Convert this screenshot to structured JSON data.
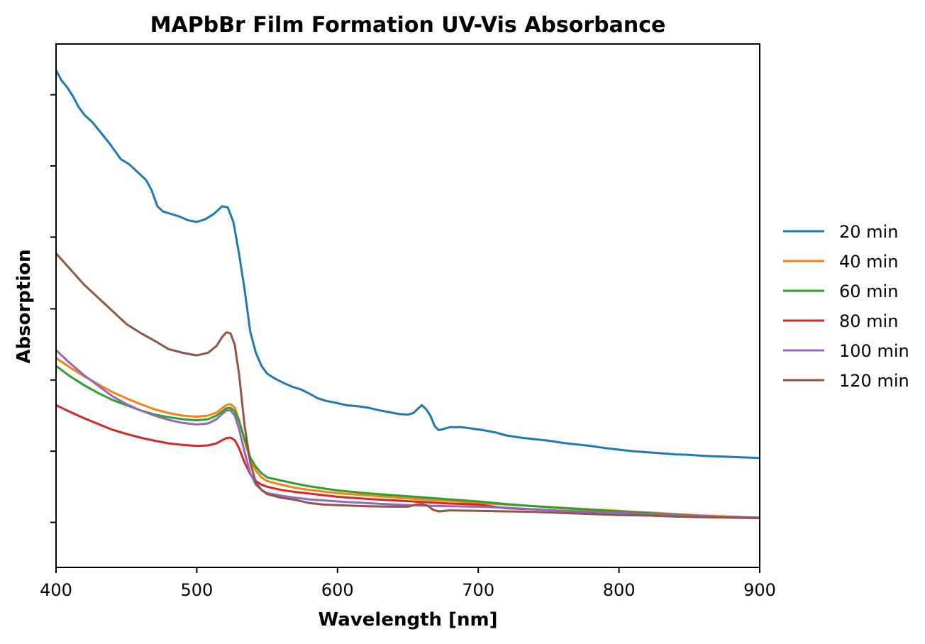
{
  "chart_data": {
    "type": "line",
    "title": "MAPbBr Film Formation UV-Vis Absorbance",
    "xlabel": "Wavelength [nm]",
    "ylabel": "Absorption",
    "xlim": [
      400,
      900
    ],
    "ylim": [
      0,
      1
    ],
    "x_ticks": [
      400,
      500,
      600,
      700,
      800,
      900
    ],
    "y_tick_labels_shown": false,
    "y_ticks": [
      0.086,
      0.222,
      0.358,
      0.494,
      0.631,
      0.767,
      0.903
    ],
    "grid": false,
    "legend": "right-outside",
    "series": [
      {
        "name": "20 min",
        "color": "#1f77b4",
        "points": [
          [
            400,
            0.95
          ],
          [
            404,
            0.93
          ],
          [
            408,
            0.917
          ],
          [
            412,
            0.9
          ],
          [
            416,
            0.88
          ],
          [
            420,
            0.865
          ],
          [
            426,
            0.85
          ],
          [
            432,
            0.83
          ],
          [
            438,
            0.81
          ],
          [
            442,
            0.795
          ],
          [
            446,
            0.78
          ],
          [
            452,
            0.77
          ],
          [
            458,
            0.755
          ],
          [
            464,
            0.74
          ],
          [
            468,
            0.72
          ],
          [
            472,
            0.69
          ],
          [
            476,
            0.68
          ],
          [
            482,
            0.675
          ],
          [
            488,
            0.67
          ],
          [
            494,
            0.663
          ],
          [
            500,
            0.66
          ],
          [
            506,
            0.665
          ],
          [
            512,
            0.675
          ],
          [
            518,
            0.69
          ],
          [
            522,
            0.688
          ],
          [
            526,
            0.66
          ],
          [
            530,
            0.6
          ],
          [
            534,
            0.53
          ],
          [
            538,
            0.45
          ],
          [
            542,
            0.41
          ],
          [
            546,
            0.385
          ],
          [
            550,
            0.37
          ],
          [
            556,
            0.36
          ],
          [
            562,
            0.352
          ],
          [
            568,
            0.345
          ],
          [
            574,
            0.34
          ],
          [
            580,
            0.332
          ],
          [
            586,
            0.323
          ],
          [
            592,
            0.318
          ],
          [
            598,
            0.315
          ],
          [
            606,
            0.31
          ],
          [
            614,
            0.308
          ],
          [
            622,
            0.305
          ],
          [
            630,
            0.3
          ],
          [
            638,
            0.296
          ],
          [
            644,
            0.293
          ],
          [
            650,
            0.292
          ],
          [
            654,
            0.295
          ],
          [
            657,
            0.303
          ],
          [
            660,
            0.31
          ],
          [
            663,
            0.302
          ],
          [
            666,
            0.29
          ],
          [
            669,
            0.27
          ],
          [
            672,
            0.262
          ],
          [
            676,
            0.265
          ],
          [
            680,
            0.268
          ],
          [
            688,
            0.268
          ],
          [
            696,
            0.265
          ],
          [
            704,
            0.262
          ],
          [
            712,
            0.258
          ],
          [
            720,
            0.252
          ],
          [
            730,
            0.248
          ],
          [
            740,
            0.245
          ],
          [
            750,
            0.242
          ],
          [
            760,
            0.238
          ],
          [
            770,
            0.235
          ],
          [
            780,
            0.232
          ],
          [
            790,
            0.228
          ],
          [
            800,
            0.225
          ],
          [
            810,
            0.222
          ],
          [
            820,
            0.22
          ],
          [
            830,
            0.218
          ],
          [
            840,
            0.216
          ],
          [
            850,
            0.215
          ],
          [
            860,
            0.213
          ],
          [
            870,
            0.212
          ],
          [
            880,
            0.211
          ],
          [
            890,
            0.21
          ],
          [
            900,
            0.209
          ]
        ]
      },
      {
        "name": "40 min",
        "color": "#ff7f0e",
        "points": [
          [
            400,
            0.4
          ],
          [
            410,
            0.382
          ],
          [
            420,
            0.365
          ],
          [
            430,
            0.35
          ],
          [
            440,
            0.335
          ],
          [
            450,
            0.323
          ],
          [
            460,
            0.312
          ],
          [
            470,
            0.302
          ],
          [
            480,
            0.295
          ],
          [
            490,
            0.29
          ],
          [
            500,
            0.288
          ],
          [
            508,
            0.29
          ],
          [
            514,
            0.296
          ],
          [
            518,
            0.304
          ],
          [
            521,
            0.31
          ],
          [
            524,
            0.312
          ],
          [
            527,
            0.305
          ],
          [
            530,
            0.282
          ],
          [
            534,
            0.242
          ],
          [
            538,
            0.205
          ],
          [
            542,
            0.185
          ],
          [
            546,
            0.172
          ],
          [
            550,
            0.165
          ],
          [
            560,
            0.158
          ],
          [
            570,
            0.152
          ],
          [
            580,
            0.148
          ],
          [
            590,
            0.145
          ],
          [
            600,
            0.142
          ],
          [
            620,
            0.138
          ],
          [
            640,
            0.134
          ],
          [
            660,
            0.13
          ],
          [
            680,
            0.127
          ],
          [
            700,
            0.123
          ],
          [
            720,
            0.12
          ],
          [
            740,
            0.117
          ],
          [
            760,
            0.114
          ],
          [
            780,
            0.111
          ],
          [
            800,
            0.108
          ],
          [
            820,
            0.105
          ],
          [
            840,
            0.102
          ],
          [
            860,
            0.099
          ],
          [
            880,
            0.097
          ],
          [
            900,
            0.095
          ]
        ]
      },
      {
        "name": "60 min",
        "color": "#2ca02c",
        "points": [
          [
            400,
            0.385
          ],
          [
            410,
            0.365
          ],
          [
            420,
            0.348
          ],
          [
            430,
            0.333
          ],
          [
            440,
            0.32
          ],
          [
            450,
            0.31
          ],
          [
            460,
            0.3
          ],
          [
            470,
            0.292
          ],
          [
            480,
            0.287
          ],
          [
            490,
            0.283
          ],
          [
            500,
            0.281
          ],
          [
            508,
            0.283
          ],
          [
            514,
            0.29
          ],
          [
            518,
            0.298
          ],
          [
            521,
            0.304
          ],
          [
            524,
            0.305
          ],
          [
            527,
            0.298
          ],
          [
            530,
            0.28
          ],
          [
            534,
            0.245
          ],
          [
            538,
            0.21
          ],
          [
            542,
            0.192
          ],
          [
            546,
            0.18
          ],
          [
            550,
            0.172
          ],
          [
            560,
            0.166
          ],
          [
            570,
            0.16
          ],
          [
            580,
            0.155
          ],
          [
            590,
            0.151
          ],
          [
            600,
            0.147
          ],
          [
            620,
            0.142
          ],
          [
            640,
            0.138
          ],
          [
            660,
            0.134
          ],
          [
            680,
            0.13
          ],
          [
            700,
            0.126
          ],
          [
            720,
            0.121
          ],
          [
            740,
            0.117
          ],
          [
            760,
            0.113
          ],
          [
            780,
            0.11
          ],
          [
            800,
            0.107
          ],
          [
            820,
            0.104
          ],
          [
            840,
            0.101
          ],
          [
            860,
            0.098
          ],
          [
            880,
            0.096
          ],
          [
            900,
            0.094
          ]
        ]
      },
      {
        "name": "80 min",
        "color": "#d62728",
        "points": [
          [
            400,
            0.31
          ],
          [
            410,
            0.297
          ],
          [
            420,
            0.285
          ],
          [
            430,
            0.274
          ],
          [
            440,
            0.263
          ],
          [
            450,
            0.255
          ],
          [
            460,
            0.248
          ],
          [
            470,
            0.242
          ],
          [
            480,
            0.237
          ],
          [
            490,
            0.234
          ],
          [
            500,
            0.232
          ],
          [
            508,
            0.233
          ],
          [
            514,
            0.237
          ],
          [
            518,
            0.243
          ],
          [
            521,
            0.247
          ],
          [
            524,
            0.248
          ],
          [
            527,
            0.243
          ],
          [
            530,
            0.228
          ],
          [
            534,
            0.2
          ],
          [
            538,
            0.178
          ],
          [
            542,
            0.165
          ],
          [
            546,
            0.158
          ],
          [
            550,
            0.154
          ],
          [
            560,
            0.148
          ],
          [
            570,
            0.144
          ],
          [
            580,
            0.141
          ],
          [
            590,
            0.138
          ],
          [
            600,
            0.135
          ],
          [
            620,
            0.131
          ],
          [
            640,
            0.128
          ],
          [
            660,
            0.125
          ],
          [
            680,
            0.122
          ],
          [
            700,
            0.12
          ],
          [
            720,
            0.113
          ],
          [
            740,
            0.111
          ],
          [
            760,
            0.108
          ],
          [
            780,
            0.106
          ],
          [
            800,
            0.104
          ],
          [
            820,
            0.102
          ],
          [
            840,
            0.1
          ],
          [
            860,
            0.098
          ],
          [
            880,
            0.096
          ],
          [
            900,
            0.095
          ]
        ]
      },
      {
        "name": "100 min",
        "color": "#9467bd",
        "points": [
          [
            400,
            0.415
          ],
          [
            410,
            0.39
          ],
          [
            420,
            0.367
          ],
          [
            430,
            0.347
          ],
          [
            440,
            0.327
          ],
          [
            450,
            0.312
          ],
          [
            460,
            0.3
          ],
          [
            470,
            0.29
          ],
          [
            480,
            0.282
          ],
          [
            490,
            0.276
          ],
          [
            500,
            0.273
          ],
          [
            508,
            0.275
          ],
          [
            514,
            0.283
          ],
          [
            518,
            0.293
          ],
          [
            521,
            0.3
          ],
          [
            524,
            0.3
          ],
          [
            527,
            0.29
          ],
          [
            530,
            0.265
          ],
          [
            534,
            0.22
          ],
          [
            538,
            0.18
          ],
          [
            542,
            0.158
          ],
          [
            546,
            0.148
          ],
          [
            550,
            0.142
          ],
          [
            560,
            0.137
          ],
          [
            570,
            0.133
          ],
          [
            580,
            0.13
          ],
          [
            590,
            0.128
          ],
          [
            600,
            0.126
          ],
          [
            620,
            0.123
          ],
          [
            640,
            0.12
          ],
          [
            660,
            0.118
          ],
          [
            680,
            0.117
          ],
          [
            700,
            0.116
          ],
          [
            720,
            0.114
          ],
          [
            740,
            0.111
          ],
          [
            760,
            0.108
          ],
          [
            780,
            0.106
          ],
          [
            800,
            0.104
          ],
          [
            820,
            0.102
          ],
          [
            840,
            0.1
          ],
          [
            860,
            0.098
          ],
          [
            880,
            0.096
          ],
          [
            900,
            0.095
          ]
        ]
      },
      {
        "name": "120 min",
        "color": "#8c564b",
        "points": [
          [
            400,
            0.6
          ],
          [
            410,
            0.57
          ],
          [
            420,
            0.54
          ],
          [
            430,
            0.515
          ],
          [
            440,
            0.49
          ],
          [
            450,
            0.465
          ],
          [
            460,
            0.448
          ],
          [
            470,
            0.433
          ],
          [
            480,
            0.417
          ],
          [
            490,
            0.41
          ],
          [
            500,
            0.405
          ],
          [
            508,
            0.41
          ],
          [
            514,
            0.423
          ],
          [
            518,
            0.44
          ],
          [
            521,
            0.449
          ],
          [
            524,
            0.447
          ],
          [
            527,
            0.425
          ],
          [
            530,
            0.37
          ],
          [
            534,
            0.27
          ],
          [
            538,
            0.2
          ],
          [
            542,
            0.162
          ],
          [
            546,
            0.148
          ],
          [
            550,
            0.14
          ],
          [
            560,
            0.133
          ],
          [
            570,
            0.129
          ],
          [
            580,
            0.123
          ],
          [
            590,
            0.12
          ],
          [
            600,
            0.119
          ],
          [
            620,
            0.117
          ],
          [
            640,
            0.116
          ],
          [
            650,
            0.116
          ],
          [
            656,
            0.12
          ],
          [
            660,
            0.121
          ],
          [
            664,
            0.118
          ],
          [
            668,
            0.11
          ],
          [
            672,
            0.107
          ],
          [
            680,
            0.109
          ],
          [
            700,
            0.108
          ],
          [
            720,
            0.107
          ],
          [
            740,
            0.106
          ],
          [
            760,
            0.104
          ],
          [
            780,
            0.102
          ],
          [
            800,
            0.1
          ],
          [
            820,
            0.099
          ],
          [
            840,
            0.097
          ],
          [
            860,
            0.096
          ],
          [
            880,
            0.095
          ],
          [
            900,
            0.094
          ]
        ]
      }
    ]
  }
}
